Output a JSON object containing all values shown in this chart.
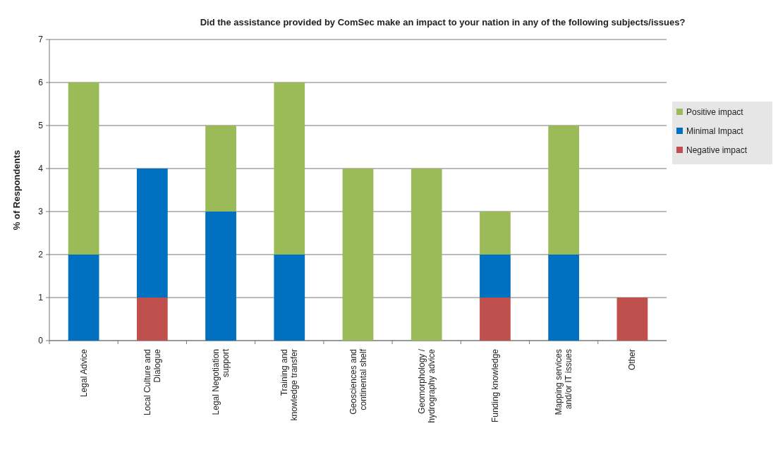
{
  "chart_data": {
    "type": "bar",
    "stacked": true,
    "title": "Did the assistance provided by ComSec make an impact to your nation in any of the following subjects/issues?",
    "ylabel": "% of Respondents",
    "categories": [
      "Legal Advice",
      "Local Culture and\nDialogue",
      "Legal Negotiation\nsupport",
      "Training and\nknowledge transfer",
      "Geosciences and\ncontinental shelf",
      "Geomorphology /\nhydrography advice",
      "Funding knowledge",
      "Mapping services\nand/or IT issues",
      "Other"
    ],
    "series": [
      {
        "name": "Negative impact",
        "color": "#c0504d",
        "values": [
          0,
          1,
          0,
          0,
          0,
          0,
          1,
          0,
          1
        ]
      },
      {
        "name": "Minimal Impact",
        "color": "#0070c0",
        "values": [
          2,
          3,
          3,
          2,
          0,
          0,
          1,
          2,
          0
        ]
      },
      {
        "name": "Positive impact",
        "color": "#9bbb59",
        "values": [
          4,
          0,
          2,
          4,
          4,
          4,
          1,
          3,
          0
        ]
      }
    ],
    "ylim": [
      0,
      7
    ],
    "yticks": [
      0,
      1,
      2,
      3,
      4,
      5,
      6,
      7
    ],
    "grid": "y",
    "legend": "right"
  }
}
